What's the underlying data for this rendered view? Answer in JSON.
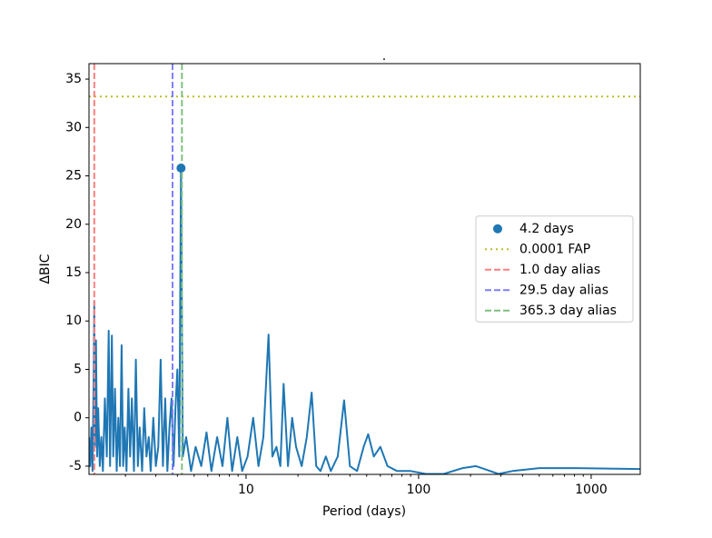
{
  "chart_data": {
    "type": "line",
    "title": ".",
    "xlabel": "Period (days)",
    "ylabel": "ΔBIC",
    "log_x": true,
    "xlim": [
      1.23,
      1925
    ],
    "ylim": [
      -5.85,
      36.6
    ],
    "xticks": [
      10,
      100,
      1000
    ],
    "yticks": [
      -5,
      0,
      5,
      10,
      15,
      20,
      25,
      30,
      35
    ],
    "legend": "right",
    "series": [
      {
        "color": "#1f77b4",
        "x": [
          1.23,
          1.25,
          1.27,
          1.29,
          1.31,
          1.32,
          1.33,
          1.35,
          1.37,
          1.39,
          1.42,
          1.45,
          1.48,
          1.52,
          1.56,
          1.6,
          1.63,
          1.67,
          1.7,
          1.74,
          1.78,
          1.82,
          1.86,
          1.9,
          1.94,
          1.98,
          2.03,
          2.08,
          2.13,
          2.18,
          2.24,
          2.3,
          2.36,
          2.42,
          2.5,
          2.57,
          2.65,
          2.73,
          2.8,
          2.9,
          3.0,
          3.1,
          3.2,
          3.3,
          3.4,
          3.5,
          3.6,
          3.7,
          3.8,
          3.9,
          4.0,
          4.1,
          4.2,
          4.3,
          4.5,
          4.8,
          5.1,
          5.5,
          5.9,
          6.3,
          6.8,
          7.3,
          7.8,
          8.3,
          8.9,
          9.5,
          10.2,
          11,
          11.8,
          12.6,
          13.5,
          14.2,
          15,
          15.8,
          16.5,
          17.5,
          18.5,
          19.5,
          21,
          22.5,
          24,
          25.5,
          27,
          29,
          31,
          34,
          37,
          40,
          44,
          48,
          51,
          55,
          60,
          66,
          75,
          90,
          110,
          140,
          180,
          215,
          250,
          290,
          350,
          500,
          800,
          1925
        ],
        "values": [
          -2,
          -5,
          -1,
          -5.5,
          5,
          12,
          -3,
          8,
          -4,
          1,
          -5,
          -2,
          -5.5,
          2,
          -4,
          9,
          -5,
          8.5,
          -4,
          3,
          -5.5,
          0,
          -5,
          7.5,
          -5,
          -1,
          -5.5,
          3,
          -4,
          2,
          -5.5,
          6,
          -5,
          -1,
          -5.5,
          1,
          -4,
          -2,
          -5.5,
          0,
          -5,
          -3,
          6,
          -5,
          2,
          -5.5,
          -1,
          2,
          -5,
          1,
          5,
          -4,
          25.8,
          -4,
          -2,
          -5.5,
          -3,
          -5,
          -1.5,
          -5.5,
          -2,
          -5,
          0,
          -5.5,
          -2,
          -5.5,
          -4,
          0,
          -5,
          -2,
          8.6,
          -4,
          -3,
          -5,
          3.5,
          -5,
          0,
          -3,
          -5,
          -2,
          2.6,
          -5,
          -5.5,
          -4,
          -5.5,
          -4,
          1.8,
          -5,
          -5.5,
          -3,
          -1.7,
          -4,
          -3,
          -5,
          -5.5,
          -5.5,
          -5.8,
          -5.8,
          -5.2,
          -5,
          -5.4,
          -5.8,
          -5.5,
          -5.2,
          -5.2,
          -5.3
        ]
      }
    ],
    "point": {
      "name": "4.2 days",
      "x": 4.2,
      "value": 25.8,
      "color": "#1f77b4"
    },
    "hlines": [
      {
        "name": "0.0001 FAP",
        "value": 33.2,
        "color": "#bcbd22",
        "style": "dotted"
      }
    ],
    "vlines": [
      {
        "name": "1.0 day alias",
        "value": 1.32,
        "color": "#ff7f7f",
        "style": "dashed"
      },
      {
        "name": "29.5 day alias",
        "value": 3.75,
        "color": "#7f7fff",
        "style": "dashed"
      },
      {
        "name": "365.3 day alias",
        "value": 4.25,
        "color": "#7fbf7f",
        "style": "dashed"
      }
    ]
  }
}
